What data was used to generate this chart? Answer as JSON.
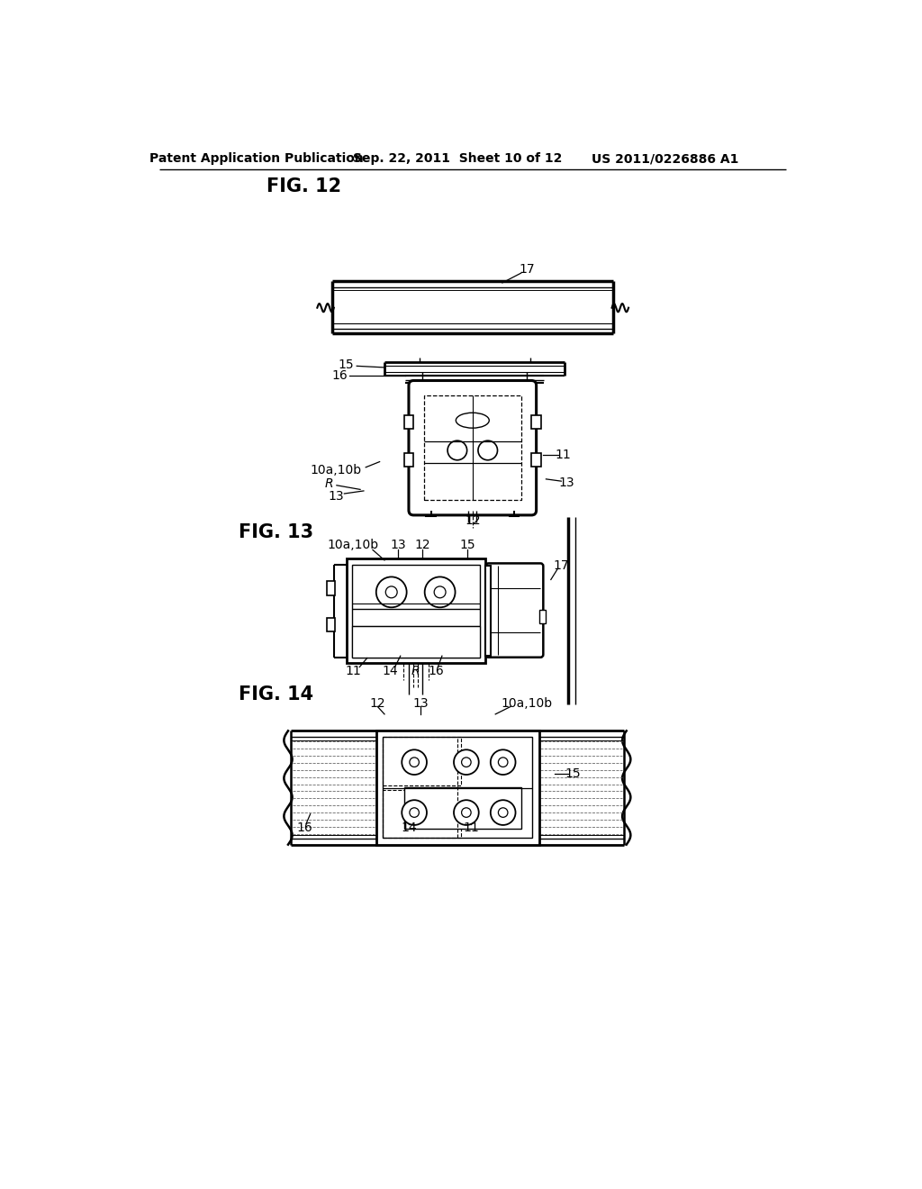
{
  "bg_color": "#ffffff",
  "header_left": "Patent Application Publication",
  "header_center": "Sep. 22, 2011  Sheet 10 of 12",
  "header_right": "US 2011/0226886 A1",
  "fig12_label": "FIG. 12",
  "fig13_label": "FIG. 13",
  "fig14_label": "FIG. 14"
}
